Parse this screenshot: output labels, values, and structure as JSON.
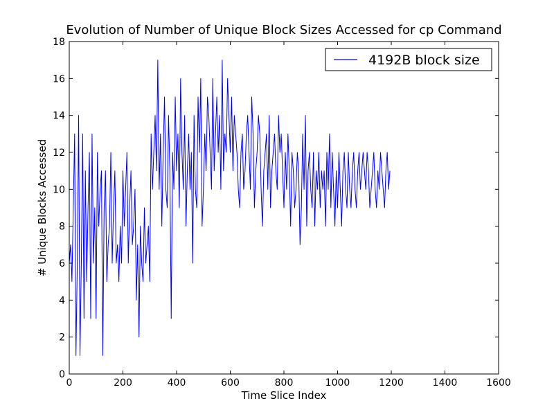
{
  "chart_data": {
    "type": "line",
    "title": "Evolution of Number of Unique Block Sizes Accessed for cp Command",
    "xlabel": "Time Slice Index",
    "ylabel": "# Unique Blocks Accessed",
    "xlim": [
      0,
      1600
    ],
    "ylim": [
      0,
      18
    ],
    "x_ticks": [
      0,
      200,
      400,
      600,
      800,
      1000,
      1200,
      1400,
      1600
    ],
    "y_ticks": [
      0,
      2,
      4,
      6,
      8,
      10,
      12,
      14,
      16,
      18
    ],
    "grid": false,
    "legend_position": "top-right",
    "series": [
      {
        "name": "4192B block size",
        "color": "#0000ff",
        "x_start": 0,
        "x_step": 5,
        "values": [
          6,
          7,
          5,
          9,
          13,
          1,
          6,
          14,
          1,
          6,
          13,
          3,
          11,
          5,
          9,
          12,
          3,
          13,
          6,
          9,
          3,
          12,
          8,
          10,
          11,
          1,
          9,
          11,
          5,
          7,
          8,
          12,
          6,
          9,
          11,
          6,
          7,
          5,
          8,
          6,
          11,
          8,
          10,
          12,
          6,
          9,
          11,
          7,
          8,
          10,
          4,
          7,
          2,
          8,
          6,
          5,
          9,
          6,
          7,
          8,
          5,
          13,
          10,
          12,
          14,
          11,
          17,
          10,
          13,
          8,
          12,
          15,
          10,
          9,
          14,
          11,
          3,
          12,
          10,
          15,
          11,
          13,
          9,
          16,
          12,
          10,
          14,
          8,
          11,
          13,
          10,
          12,
          6,
          14,
          10,
          9,
          15,
          12,
          16,
          8,
          10,
          13,
          11,
          15,
          14,
          12,
          10,
          16,
          11,
          13,
          15,
          12,
          14,
          10,
          17,
          11,
          13,
          12,
          16,
          14,
          12,
          15,
          11,
          14,
          13,
          12,
          10,
          9,
          12,
          13,
          10,
          11,
          13,
          14,
          12,
          10,
          15,
          13,
          9,
          11,
          12,
          14,
          13,
          10,
          8,
          11,
          12,
          13,
          10,
          14,
          9,
          11,
          12,
          13,
          11,
          10,
          14,
          12,
          13,
          11,
          9,
          12,
          10,
          13,
          11,
          8,
          12,
          11,
          9,
          10,
          12,
          11,
          7,
          9,
          13,
          10,
          14,
          8,
          11,
          12,
          10,
          9,
          12,
          8,
          11,
          10,
          12,
          9,
          11,
          10,
          11,
          8,
          12,
          10,
          13,
          9,
          12,
          10,
          8,
          11,
          9,
          12,
          10,
          8,
          11,
          12,
          10,
          9,
          12,
          10,
          9,
          11,
          12,
          10,
          9,
          11,
          12,
          10,
          11,
          12,
          11,
          10,
          12,
          11,
          9,
          10,
          11,
          12,
          10,
          9,
          11,
          10,
          12,
          11,
          10,
          9,
          11,
          12,
          10,
          11
        ]
      }
    ]
  }
}
